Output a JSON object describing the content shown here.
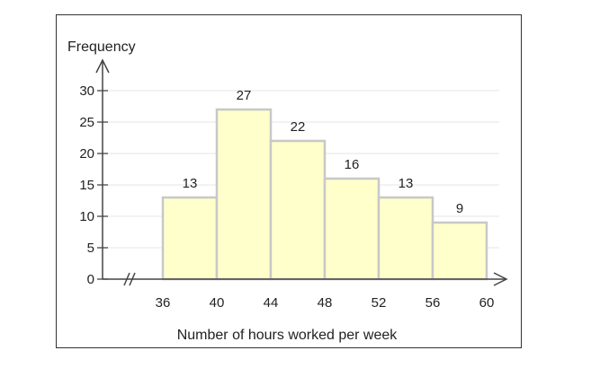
{
  "chart_data": {
    "type": "bar",
    "subtype": "histogram",
    "bins": [
      {
        "from": 40,
        "to": 44,
        "value": 27
      },
      {
        "from": 44,
        "to": 48,
        "value": 22
      },
      {
        "from": 48,
        "to": 52,
        "value": 16
      },
      {
        "from": 52,
        "to": 56,
        "value": 13
      },
      {
        "from": 56,
        "to": 60,
        "value": 9
      }
    ],
    "first_bin": {
      "from": 36,
      "to": 40,
      "value": 13
    },
    "x_ticks": [
      "36",
      "40",
      "44",
      "48",
      "52",
      "56",
      "60"
    ],
    "y_ticks": [
      "0",
      "5",
      "10",
      "15",
      "20",
      "25",
      "30"
    ],
    "xlim": [
      36,
      60
    ],
    "ylim": [
      0,
      30
    ],
    "xlabel": "Number of hours worked per week",
    "ylabel": "Frequency",
    "grid": true,
    "x_axis_break": true,
    "colors": {
      "bar_fill": "#ffffcc",
      "bar_stroke": "#c8c8c8",
      "axis": "#444444",
      "grid": "#e6e6e6"
    }
  }
}
